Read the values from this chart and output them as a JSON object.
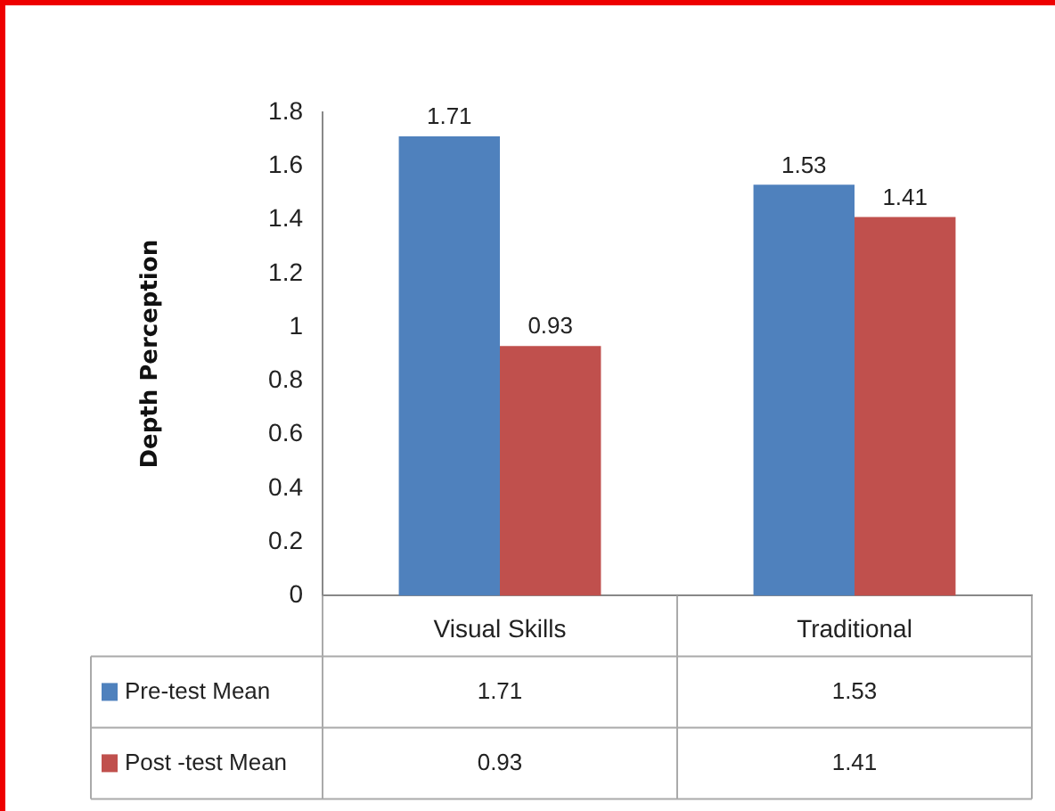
{
  "chart_data": {
    "type": "bar",
    "ylabel": "Depth Perception",
    "categories": [
      "Visual Skills",
      "Traditional"
    ],
    "series": [
      {
        "name": "Pre-test Mean",
        "color": "#4f81bd",
        "values": [
          1.71,
          1.53
        ],
        "value_labels": [
          "1.71",
          "1.53"
        ]
      },
      {
        "name": "Post -test Mean",
        "color": "#c0504d",
        "values": [
          0.93,
          1.41
        ],
        "value_labels": [
          "0.93",
          "1.41"
        ]
      }
    ],
    "annotations": [
      "1.71",
      "1.53",
      "0.93",
      "1.41"
    ],
    "ylim": [
      0,
      1.8
    ],
    "yticks": [
      0,
      0.2,
      0.4,
      0.6,
      0.8,
      1,
      1.2,
      1.4,
      1.6,
      1.8
    ],
    "grid": false,
    "legend": "bottom"
  }
}
